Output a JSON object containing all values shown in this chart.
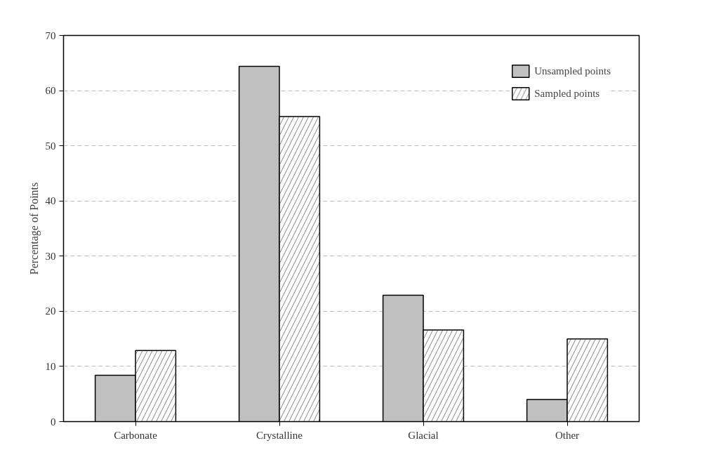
{
  "chart_data": {
    "type": "bar",
    "ylabel": "Percentage of Points",
    "categories": [
      "Carbonate",
      "Crystalline",
      "Glacial",
      "Other"
    ],
    "series": [
      {
        "name": "Unsampled points",
        "color": "#c0c0c0",
        "values": [
          8.4,
          64.4,
          22.9,
          4.0
        ]
      },
      {
        "name": "Sampled points",
        "color": "#ffffff",
        "values": [
          12.9,
          55.3,
          16.6,
          15.0
        ]
      }
    ],
    "ylim": [
      0,
      70
    ],
    "yticks": [
      0,
      10,
      20,
      30,
      40,
      50,
      60,
      70
    ],
    "grid": "y",
    "legend": "top right"
  }
}
